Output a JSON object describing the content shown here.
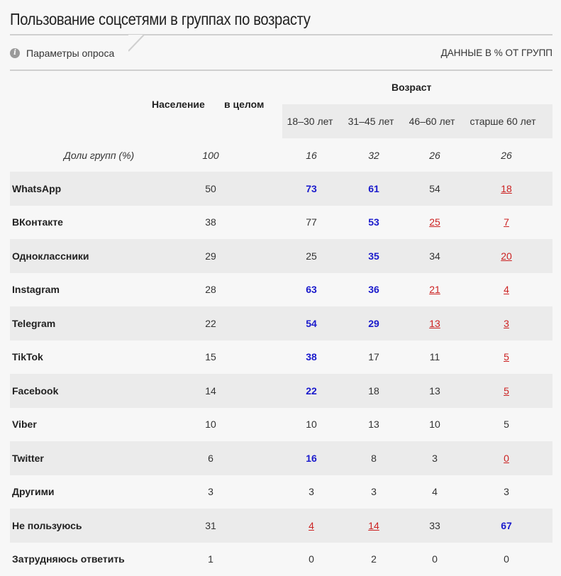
{
  "title": "Пользование соцсетями в группах по возрасту",
  "params_label": "Параметры опроса",
  "units_label": "ДАННЫЕ В % ОТ ГРУПП",
  "header": {
    "population": "Население",
    "overall": "в целом",
    "age": "Возраст",
    "age_groups": [
      "18–30 лет",
      "31–45 лет",
      "46–60 лет",
      "старше 60 лет"
    ]
  },
  "shares": {
    "label": "Доли групп (%)",
    "values": [
      "100",
      "16",
      "32",
      "26",
      "26"
    ]
  },
  "rows": [
    {
      "name": "WhatsApp",
      "values": [
        "50",
        "73",
        "61",
        "54",
        "18"
      ],
      "marks": [
        "",
        "high",
        "high",
        "",
        "low"
      ]
    },
    {
      "name": "ВКонтакте",
      "values": [
        "38",
        "77",
        "53",
        "25",
        "7"
      ],
      "marks": [
        "",
        "",
        "high",
        "low",
        "low"
      ]
    },
    {
      "name": "Одноклассники",
      "values": [
        "29",
        "25",
        "35",
        "34",
        "20"
      ],
      "marks": [
        "",
        "",
        "high",
        "",
        "low"
      ]
    },
    {
      "name": "Instagram",
      "values": [
        "28",
        "63",
        "36",
        "21",
        "4"
      ],
      "marks": [
        "",
        "high",
        "high",
        "low",
        "low"
      ]
    },
    {
      "name": "Telegram",
      "values": [
        "22",
        "54",
        "29",
        "13",
        "3"
      ],
      "marks": [
        "",
        "high",
        "high",
        "low",
        "low"
      ]
    },
    {
      "name": "TikTok",
      "values": [
        "15",
        "38",
        "17",
        "11",
        "5"
      ],
      "marks": [
        "",
        "high",
        "",
        "",
        "low"
      ]
    },
    {
      "name": "Facebook",
      "values": [
        "14",
        "22",
        "18",
        "13",
        "5"
      ],
      "marks": [
        "",
        "high",
        "",
        "",
        "low"
      ]
    },
    {
      "name": "Viber",
      "values": [
        "10",
        "10",
        "13",
        "10",
        "5"
      ],
      "marks": [
        "",
        "",
        "",
        "",
        ""
      ]
    },
    {
      "name": "Twitter",
      "values": [
        "6",
        "16",
        "8",
        "3",
        "0"
      ],
      "marks": [
        "",
        "high",
        "",
        "",
        "low"
      ]
    },
    {
      "name": "Другими",
      "values": [
        "3",
        "3",
        "3",
        "4",
        "3"
      ],
      "marks": [
        "",
        "",
        "",
        "",
        ""
      ]
    },
    {
      "name": "Не пользуюсь",
      "values": [
        "31",
        "4",
        "14",
        "33",
        "67"
      ],
      "marks": [
        "",
        "low",
        "low",
        "",
        "high"
      ]
    },
    {
      "name": "Затрудняюсь ответить",
      "values": [
        "1",
        "0",
        "2",
        "0",
        "0"
      ],
      "marks": [
        "",
        "",
        "",
        "",
        ""
      ]
    }
  ],
  "colors": {
    "high": "#1a1acc",
    "low": "#cc2222",
    "row_shade": "#ebebeb",
    "background": "#f7f7f7"
  }
}
